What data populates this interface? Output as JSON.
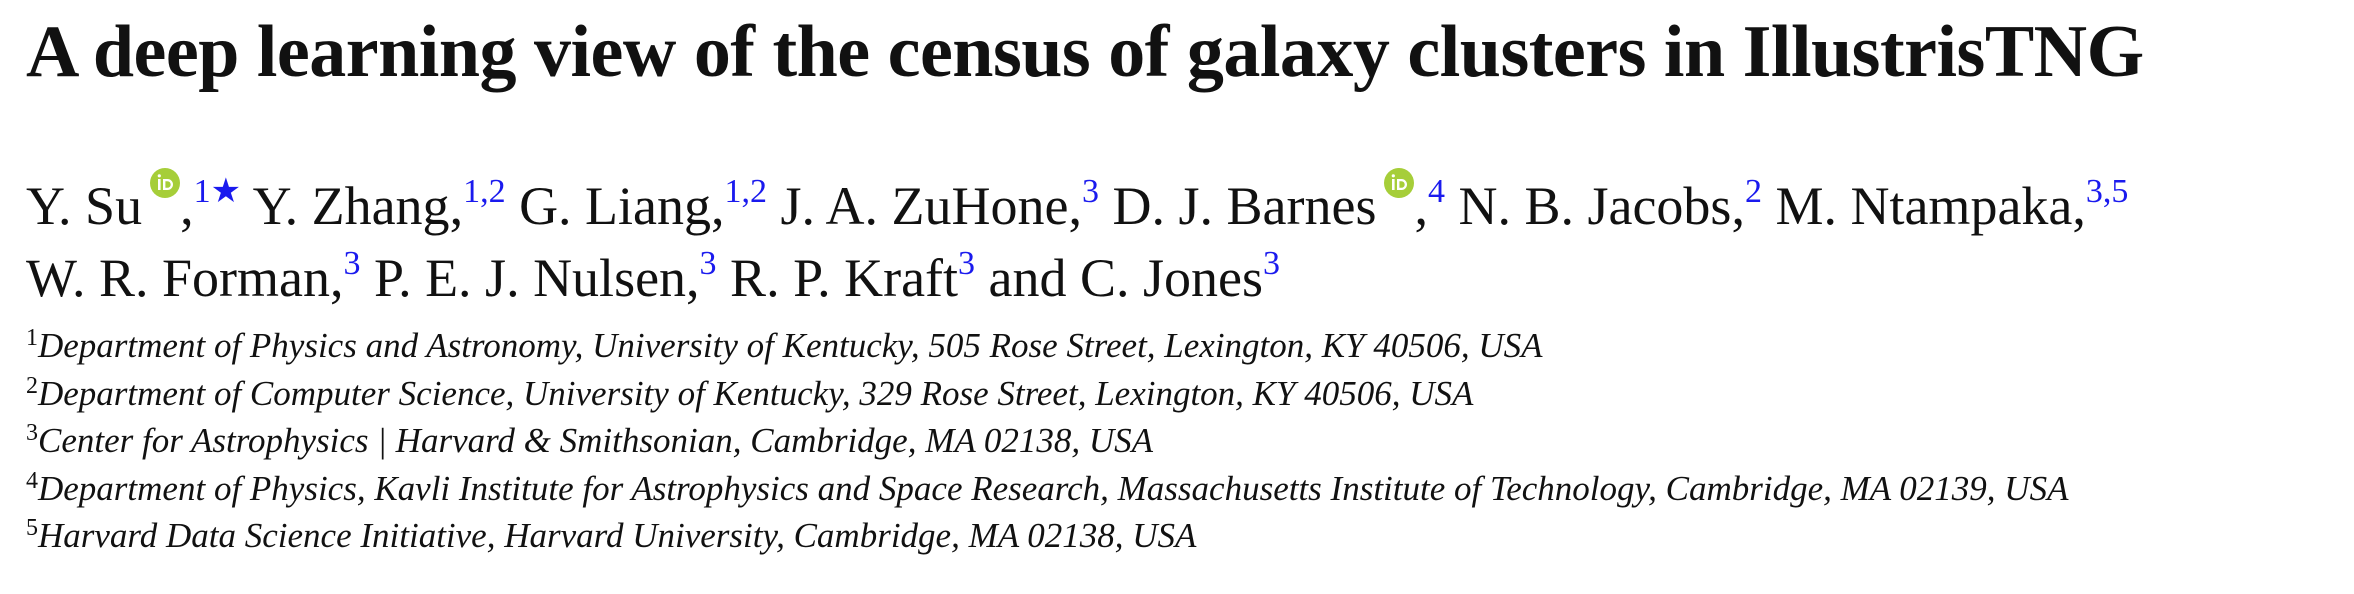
{
  "header": {
    "title": "A deep learning view of the census of galaxy clusters in IllustrisTNG"
  },
  "authors": [
    {
      "name": "Y. Su",
      "orcid": true,
      "punct": ",",
      "sup": "1★"
    },
    {
      "name": "Y. Zhang",
      "punct": ",",
      "sup": "1,2"
    },
    {
      "name": "G. Liang",
      "punct": ",",
      "sup": "1,2"
    },
    {
      "name": "J. A. ZuHone",
      "punct": ",",
      "sup": "3"
    },
    {
      "name": "D. J. Barnes",
      "orcid": true,
      "punct": ",",
      "sup": "4"
    },
    {
      "name": "N. B. Jacobs",
      "punct": ",",
      "sup": "2"
    },
    {
      "name": "M. Ntampaka",
      "punct": ",",
      "sup": "3,5"
    },
    {
      "name": "W. R. Forman",
      "punct": ",",
      "sup": "3"
    },
    {
      "name": "P. E. J. Nulsen",
      "punct": ",",
      "sup": "3"
    },
    {
      "name": "R. P. Kraft",
      "sup": "3"
    },
    {
      "name": "C. Jones",
      "sup": "3"
    }
  ],
  "conjunction": "and",
  "affiliations": [
    {
      "number": "1",
      "text": "Department of Physics and Astronomy, University of Kentucky, 505 Rose Street, Lexington, KY 40506, USA"
    },
    {
      "number": "2",
      "text": "Department of Computer Science, University of Kentucky, 329 Rose Street, Lexington, KY 40506, USA"
    },
    {
      "number": "3",
      "text": "Center for Astrophysics | Harvard & Smithsonian, Cambridge, MA 02138, USA"
    },
    {
      "number": "4",
      "text": "Department of Physics, Kavli Institute for Astrophysics and Space Research, Massachusetts Institute of Technology, Cambridge, MA 02139, USA"
    },
    {
      "number": "5",
      "text": "Harvard Data Science Initiative, Harvard University, Cambridge, MA 02138, USA"
    }
  ]
}
